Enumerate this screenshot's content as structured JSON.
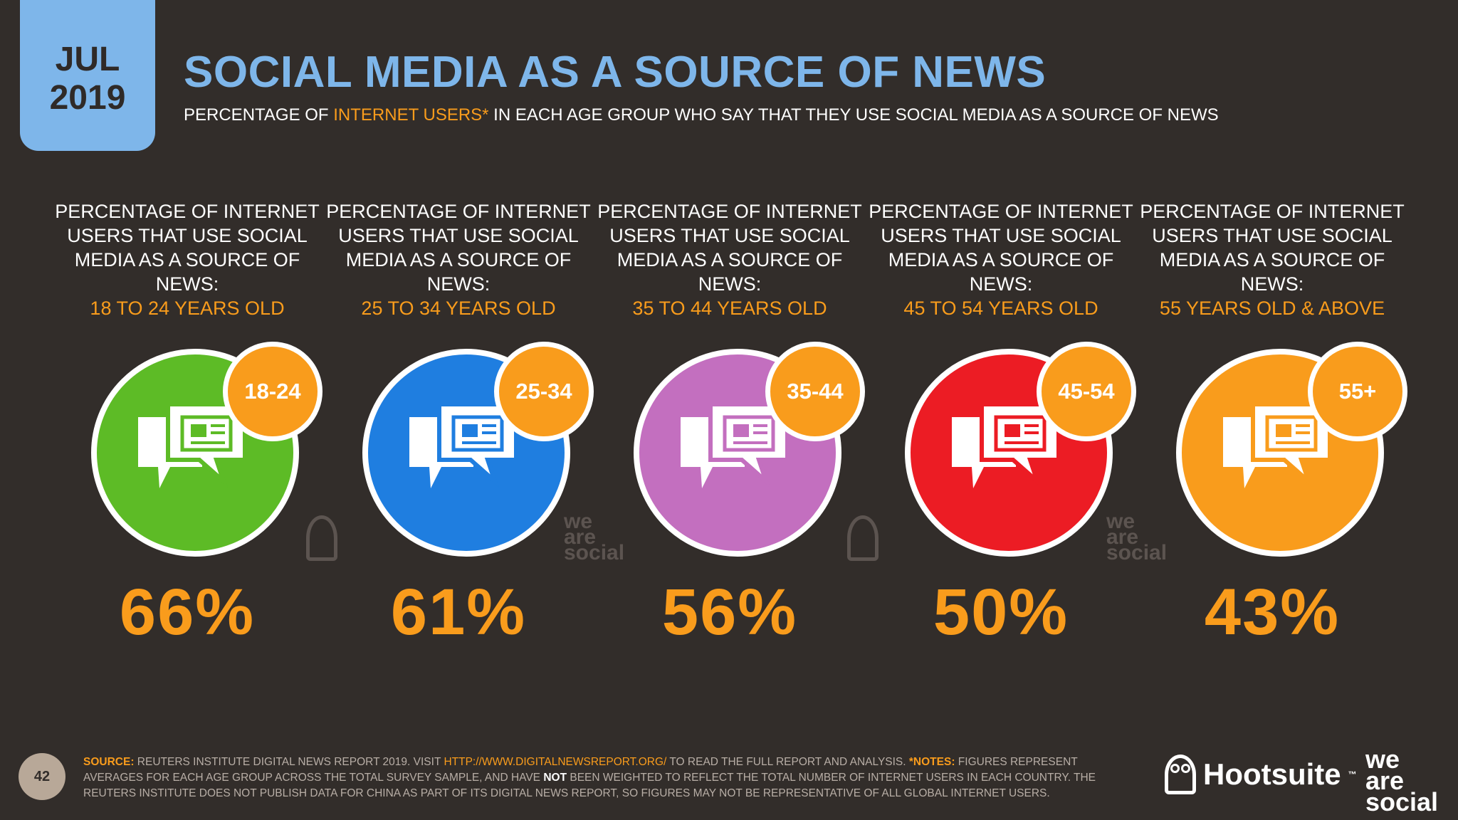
{
  "header": {
    "month": "JUL",
    "year": "2019",
    "title": "SOCIAL MEDIA AS A SOURCE OF NEWS",
    "subtitle_pre": "PERCENTAGE OF ",
    "subtitle_hl": "INTERNET USERS*",
    "subtitle_post": " IN EACH AGE GROUP WHO SAY THAT THEY USE SOCIAL MEDIA AS A SOURCE OF NEWS"
  },
  "groups": [
    {
      "label": "PERCENTAGE OF INTERNET USERS THAT USE SOCIAL MEDIA AS A SOURCE OF NEWS:",
      "age_text": "18 TO 24 YEARS OLD",
      "badge": "18-24",
      "value": "66%",
      "color": "#5dbb26",
      "icon": "news-chat-icon"
    },
    {
      "label": "PERCENTAGE OF INTERNET USERS THAT USE SOCIAL MEDIA AS A SOURCE OF NEWS:",
      "age_text": "25 TO 34 YEARS OLD",
      "badge": "25-34",
      "value": "61%",
      "color": "#1f7ee0",
      "icon": "news-chat-icon"
    },
    {
      "label": "PERCENTAGE OF INTERNET USERS THAT USE SOCIAL MEDIA AS A SOURCE OF NEWS:",
      "age_text": "35 TO 44 YEARS OLD",
      "badge": "35-44",
      "value": "56%",
      "color": "#c36fbf",
      "icon": "news-chat-icon"
    },
    {
      "label": "PERCENTAGE OF INTERNET USERS THAT USE SOCIAL MEDIA AS A SOURCE OF NEWS:",
      "age_text": "45 TO 54 YEARS OLD",
      "badge": "45-54",
      "value": "50%",
      "color": "#ec1c24",
      "icon": "news-chat-icon"
    },
    {
      "label": "PERCENTAGE OF INTERNET USERS THAT USE SOCIAL MEDIA AS A SOURCE OF NEWS:",
      "age_text": "55 YEARS OLD & ABOVE",
      "badge": "55+",
      "value": "43%",
      "color": "#f99c1c",
      "icon": "news-chat-icon"
    }
  ],
  "watermarks": {
    "was_line1": "we",
    "was_line2": "are",
    "was_line3": "social"
  },
  "footer": {
    "page_number": "42",
    "source_label": "SOURCE:",
    "source_text": " REUTERS INSTITUTE DIGITAL NEWS REPORT 2019. VISIT ",
    "source_link": "HTTP://WWW.DIGITALNEWSREPORT.ORG/",
    "source_after": " TO READ THE FULL REPORT AND ANALYSIS. ",
    "notes_label": "*NOTES:",
    "notes_text1": " FIGURES REPRESENT AVERAGES FOR EACH AGE GROUP ACROSS THE TOTAL SURVEY SAMPLE, AND HAVE ",
    "notes_not": "NOT",
    "notes_text2": " BEEN WEIGHTED TO REFLECT THE TOTAL NUMBER OF INTERNET USERS IN EACH COUNTRY. THE REUTERS INSTITUTE DOES NOT PUBLISH DATA FOR CHINA AS PART OF ITS DIGITAL NEWS REPORT, SO FIGURES MAY NOT BE REPRESENTATIVE OF ALL GLOBAL INTERNET USERS.",
    "hootsuite": "Hootsuite",
    "tm": "™",
    "was_line1": "we",
    "was_line2": "are",
    "was_line3": "social"
  }
}
